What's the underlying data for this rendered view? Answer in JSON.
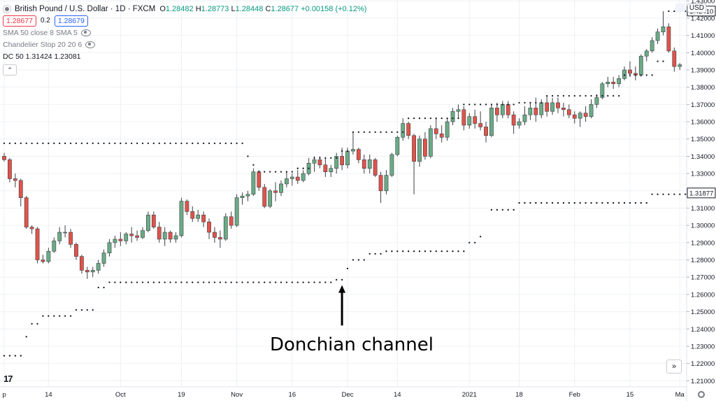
{
  "legend": {
    "symbol": "British Pound / U.S. Dollar · 1D · FXCM",
    "ohlc": {
      "o_key": "O",
      "o": "1.28482",
      "h_key": "H",
      "h": "1.28773",
      "l_key": "L",
      "l": "1.28448",
      "c_key": "C",
      "c": "1.28677",
      "change": "+0.00158 (+0.12%)"
    },
    "sell_price": "1.28677",
    "spread": "0.2",
    "buy_price": "1.28679",
    "indicators": [
      {
        "label": "SMA 50 close 8 SMA 5"
      },
      {
        "label": "Chandelier Stop 20 20 6"
      },
      {
        "label": "DC 50 1.31424 1.23081"
      }
    ],
    "collapse_glyph": "⌃"
  },
  "currency": "USD",
  "scroll_glyph": "»",
  "logo_text": "17",
  "annotation": "Donchian channel",
  "colors": {
    "up": "#6aab86",
    "down": "#e0534a",
    "grid": "#eef0f3",
    "channel_dots": "#131722",
    "arrow": "#000000"
  },
  "chart_data": {
    "type": "candlestick",
    "y_range": [
      1.2065,
      1.4305
    ],
    "y_ticks": [
      "1.43000",
      "1.42000",
      "1.41000",
      "1.40000",
      "1.39000",
      "1.38000",
      "1.37000",
      "1.36000",
      "1.35000",
      "1.34000",
      "1.33000",
      "1.32000",
      "1.31000",
      "1.30000",
      "1.29000",
      "1.28000",
      "1.27000",
      "1.26000",
      "1.25000",
      "1.24000",
      "1.23000",
      "1.22000",
      "1.21000"
    ],
    "x_tick_labels": [
      {
        "label": "p",
        "index": 0
      },
      {
        "label": "14",
        "index": 8
      },
      {
        "label": "Oct",
        "index": 21
      },
      {
        "label": "19",
        "index": 32
      },
      {
        "label": "Nov",
        "index": 42
      },
      {
        "label": "16",
        "index": 52
      },
      {
        "label": "Dec",
        "index": 62
      },
      {
        "label": "14",
        "index": 71
      },
      {
        "label": "2021",
        "index": 84
      },
      {
        "label": "18",
        "index": 93
      },
      {
        "label": "Feb",
        "index": 103
      },
      {
        "label": "15",
        "index": 113
      },
      {
        "label": "Ma",
        "index": 122
      }
    ],
    "price_labels": [
      {
        "value": 1.4241,
        "text": "1.42410"
      },
      {
        "value": 1.31877,
        "text": "1.31877"
      }
    ],
    "candles": [
      [
        1.34,
        1.342,
        1.337,
        1.338
      ],
      [
        1.338,
        1.339,
        1.325,
        1.327
      ],
      [
        1.327,
        1.33,
        1.322,
        1.326
      ],
      [
        1.326,
        1.327,
        1.311,
        1.316
      ],
      [
        1.316,
        1.317,
        1.298,
        1.299
      ],
      [
        1.299,
        1.3,
        1.295,
        1.298
      ],
      [
        1.298,
        1.299,
        1.278,
        1.28
      ],
      [
        1.28,
        1.283,
        1.278,
        1.279
      ],
      [
        1.279,
        1.287,
        1.278,
        1.285
      ],
      [
        1.285,
        1.293,
        1.284,
        1.291
      ],
      [
        1.291,
        1.299,
        1.289,
        1.296
      ],
      [
        1.296,
        1.3,
        1.293,
        1.296
      ],
      [
        1.296,
        1.298,
        1.287,
        1.289
      ],
      [
        1.289,
        1.29,
        1.28,
        1.282
      ],
      [
        1.282,
        1.283,
        1.272,
        1.274
      ],
      [
        1.274,
        1.276,
        1.269,
        1.273
      ],
      [
        1.273,
        1.276,
        1.27,
        1.274
      ],
      [
        1.274,
        1.28,
        1.272,
        1.278
      ],
      [
        1.278,
        1.286,
        1.276,
        1.284
      ],
      [
        1.284,
        1.292,
        1.282,
        1.29
      ],
      [
        1.29,
        1.294,
        1.287,
        1.292
      ],
      [
        1.292,
        1.296,
        1.288,
        1.291
      ],
      [
        1.291,
        1.296,
        1.289,
        1.295
      ],
      [
        1.295,
        1.299,
        1.29,
        1.294
      ],
      [
        1.294,
        1.297,
        1.291,
        1.293
      ],
      [
        1.293,
        1.299,
        1.292,
        1.297
      ],
      [
        1.297,
        1.308,
        1.296,
        1.306
      ],
      [
        1.306,
        1.308,
        1.298,
        1.299
      ],
      [
        1.299,
        1.302,
        1.29,
        1.292
      ],
      [
        1.292,
        1.299,
        1.288,
        1.296
      ],
      [
        1.296,
        1.297,
        1.29,
        1.292
      ],
      [
        1.292,
        1.296,
        1.29,
        1.294
      ],
      [
        1.294,
        1.316,
        1.293,
        1.314
      ],
      [
        1.314,
        1.315,
        1.306,
        1.308
      ],
      [
        1.308,
        1.311,
        1.302,
        1.304
      ],
      [
        1.304,
        1.309,
        1.302,
        1.306
      ],
      [
        1.306,
        1.308,
        1.299,
        1.302
      ],
      [
        1.302,
        1.304,
        1.292,
        1.296
      ],
      [
        1.296,
        1.299,
        1.29,
        1.293
      ],
      [
        1.293,
        1.297,
        1.287,
        1.292
      ],
      [
        1.292,
        1.307,
        1.291,
        1.305
      ],
      [
        1.305,
        1.308,
        1.298,
        1.3
      ],
      [
        1.3,
        1.318,
        1.299,
        1.316
      ],
      [
        1.316,
        1.319,
        1.312,
        1.317
      ],
      [
        1.317,
        1.32,
        1.314,
        1.318
      ],
      [
        1.318,
        1.333,
        1.317,
        1.331
      ],
      [
        1.331,
        1.332,
        1.32,
        1.322
      ],
      [
        1.322,
        1.324,
        1.31,
        1.311
      ],
      [
        1.311,
        1.321,
        1.31,
        1.32
      ],
      [
        1.32,
        1.325,
        1.314,
        1.319
      ],
      [
        1.319,
        1.326,
        1.317,
        1.324
      ],
      [
        1.324,
        1.331,
        1.322,
        1.327
      ],
      [
        1.327,
        1.33,
        1.323,
        1.328
      ],
      [
        1.328,
        1.332,
        1.324,
        1.326
      ],
      [
        1.326,
        1.332,
        1.325,
        1.33
      ],
      [
        1.33,
        1.339,
        1.329,
        1.336
      ],
      [
        1.336,
        1.34,
        1.331,
        1.338
      ],
      [
        1.338,
        1.34,
        1.333,
        1.335
      ],
      [
        1.335,
        1.339,
        1.328,
        1.331
      ],
      [
        1.331,
        1.335,
        1.328,
        1.333
      ],
      [
        1.333,
        1.342,
        1.33,
        1.34
      ],
      [
        1.34,
        1.345,
        1.332,
        1.335
      ],
      [
        1.335,
        1.345,
        1.333,
        1.343
      ],
      [
        1.343,
        1.354,
        1.341,
        1.344
      ],
      [
        1.344,
        1.345,
        1.336,
        1.338
      ],
      [
        1.338,
        1.341,
        1.33,
        1.333
      ],
      [
        1.333,
        1.341,
        1.33,
        1.338
      ],
      [
        1.338,
        1.339,
        1.328,
        1.329
      ],
      [
        1.329,
        1.331,
        1.313,
        1.32
      ],
      [
        1.32,
        1.332,
        1.318,
        1.329
      ],
      [
        1.329,
        1.342,
        1.328,
        1.341
      ],
      [
        1.341,
        1.352,
        1.34,
        1.351
      ],
      [
        1.351,
        1.362,
        1.349,
        1.359
      ],
      [
        1.359,
        1.36,
        1.35,
        1.352
      ],
      [
        1.352,
        1.353,
        1.318,
        1.337
      ],
      [
        1.337,
        1.352,
        1.334,
        1.35
      ],
      [
        1.35,
        1.354,
        1.338,
        1.34
      ],
      [
        1.34,
        1.358,
        1.339,
        1.356
      ],
      [
        1.356,
        1.362,
        1.35,
        1.353
      ],
      [
        1.353,
        1.358,
        1.348,
        1.351
      ],
      [
        1.351,
        1.362,
        1.349,
        1.36
      ],
      [
        1.36,
        1.368,
        1.358,
        1.366
      ],
      [
        1.366,
        1.37,
        1.362,
        1.367
      ],
      [
        1.367,
        1.369,
        1.355,
        1.358
      ],
      [
        1.358,
        1.365,
        1.356,
        1.363
      ],
      [
        1.363,
        1.367,
        1.356,
        1.359
      ],
      [
        1.359,
        1.366,
        1.355,
        1.357
      ],
      [
        1.357,
        1.36,
        1.348,
        1.352
      ],
      [
        1.352,
        1.37,
        1.351,
        1.368
      ],
      [
        1.368,
        1.371,
        1.36,
        1.364
      ],
      [
        1.364,
        1.372,
        1.362,
        1.37
      ],
      [
        1.37,
        1.372,
        1.362,
        1.364
      ],
      [
        1.364,
        1.366,
        1.353,
        1.358
      ],
      [
        1.358,
        1.362,
        1.356,
        1.36
      ],
      [
        1.36,
        1.369,
        1.358,
        1.364
      ],
      [
        1.364,
        1.371,
        1.361,
        1.368
      ],
      [
        1.368,
        1.374,
        1.36,
        1.364
      ],
      [
        1.364,
        1.373,
        1.362,
        1.371
      ],
      [
        1.371,
        1.375,
        1.363,
        1.366
      ],
      [
        1.366,
        1.374,
        1.364,
        1.371
      ],
      [
        1.371,
        1.374,
        1.365,
        1.368
      ],
      [
        1.368,
        1.371,
        1.363,
        1.367
      ],
      [
        1.367,
        1.37,
        1.362,
        1.364
      ],
      [
        1.364,
        1.366,
        1.359,
        1.362
      ],
      [
        1.362,
        1.366,
        1.357,
        1.365
      ],
      [
        1.365,
        1.369,
        1.36,
        1.363
      ],
      [
        1.363,
        1.373,
        1.362,
        1.37
      ],
      [
        1.37,
        1.376,
        1.368,
        1.374
      ],
      [
        1.374,
        1.383,
        1.373,
        1.382
      ],
      [
        1.382,
        1.386,
        1.38,
        1.383
      ],
      [
        1.383,
        1.386,
        1.379,
        1.382
      ],
      [
        1.382,
        1.387,
        1.38,
        1.385
      ],
      [
        1.385,
        1.392,
        1.384,
        1.39
      ],
      [
        1.39,
        1.395,
        1.386,
        1.388
      ],
      [
        1.388,
        1.392,
        1.384,
        1.387
      ],
      [
        1.387,
        1.399,
        1.386,
        1.398
      ],
      [
        1.398,
        1.402,
        1.395,
        1.401
      ],
      [
        1.401,
        1.409,
        1.4,
        1.407
      ],
      [
        1.407,
        1.414,
        1.405,
        1.412
      ],
      [
        1.412,
        1.424,
        1.41,
        1.415
      ],
      [
        1.415,
        1.417,
        1.4,
        1.401
      ],
      [
        1.401,
        1.403,
        1.389,
        1.392
      ],
      [
        1.392,
        1.394,
        1.39,
        1.393
      ]
    ],
    "upper_channel": [
      [
        0,
        20,
        1.3475
      ],
      [
        21,
        41,
        1.3475
      ],
      [
        42,
        43,
        1.3475
      ],
      [
        44,
        44,
        1.34
      ],
      [
        45,
        45,
        1.335
      ],
      [
        46,
        52,
        1.331
      ],
      [
        53,
        55,
        1.333
      ],
      [
        56,
        60,
        1.339
      ],
      [
        61,
        62,
        1.343
      ],
      [
        63,
        72,
        1.354
      ],
      [
        73,
        82,
        1.362
      ],
      [
        83,
        92,
        1.37
      ],
      [
        93,
        97,
        1.371
      ],
      [
        98,
        111,
        1.375
      ],
      [
        112,
        117,
        1.387
      ],
      [
        118,
        119,
        1.395
      ],
      [
        120,
        123,
        1.424
      ]
    ],
    "lower_channel": [
      [
        0,
        3,
        1.2245
      ],
      [
        4,
        4,
        1.2355
      ],
      [
        5,
        6,
        1.243
      ],
      [
        7,
        12,
        1.2475
      ],
      [
        13,
        16,
        1.251
      ],
      [
        17,
        18,
        1.264
      ],
      [
        19,
        59,
        1.267
      ],
      [
        60,
        61,
        1.2685
      ],
      [
        62,
        62,
        1.275
      ],
      [
        63,
        65,
        1.28
      ],
      [
        66,
        68,
        1.2835
      ],
      [
        69,
        83,
        1.285
      ],
      [
        84,
        85,
        1.29
      ],
      [
        86,
        86,
        1.2935
      ],
      [
        88,
        92,
        1.309
      ],
      [
        93,
        116,
        1.313
      ],
      [
        117,
        123,
        1.318
      ]
    ],
    "arrow_index": 61,
    "arrow_value_top": 1.265,
    "arrow_value_bottom": 1.242
  }
}
